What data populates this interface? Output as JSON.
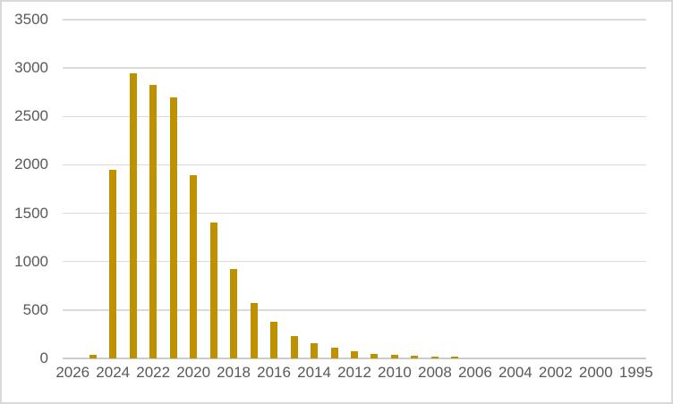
{
  "chart": {
    "colors": {
      "bar": "#BF9000",
      "gridline": "#DADADA",
      "axis_line": "#CCCCCC",
      "tick_text": "#595959",
      "frame_border": "#D9D9D9",
      "background": "#FFFFFF"
    }
  },
  "chart_data": {
    "type": "bar",
    "title": "",
    "xlabel": "",
    "ylabel": "",
    "legend": false,
    "grid": true,
    "ylim": [
      0,
      3500
    ],
    "y_tick_interval": 500,
    "y_ticks": [
      "3500",
      "3000",
      "2500",
      "2000",
      "1500",
      "1000",
      "500",
      "0"
    ],
    "x_tick_labels": [
      "2026",
      "2024",
      "2022",
      "2020",
      "2018",
      "2016",
      "2014",
      "2012",
      "2010",
      "2008",
      "2006",
      "2004",
      "2002",
      "2000",
      "1995"
    ],
    "n_slots": 29,
    "slots": [
      {
        "tick": "2026",
        "value": 0
      },
      {
        "tick": "",
        "value": 35
      },
      {
        "tick": "2024",
        "value": 1950
      },
      {
        "tick": "",
        "value": 2950
      },
      {
        "tick": "2022",
        "value": 2830
      },
      {
        "tick": "",
        "value": 2700
      },
      {
        "tick": "2020",
        "value": 1890
      },
      {
        "tick": "",
        "value": 1400
      },
      {
        "tick": "2018",
        "value": 920
      },
      {
        "tick": "",
        "value": 575
      },
      {
        "tick": "2016",
        "value": 375
      },
      {
        "tick": "",
        "value": 235
      },
      {
        "tick": "2014",
        "value": 160
      },
      {
        "tick": "",
        "value": 110
      },
      {
        "tick": "2012",
        "value": 70
      },
      {
        "tick": "",
        "value": 48
      },
      {
        "tick": "2010",
        "value": 38
      },
      {
        "tick": "",
        "value": 28
      },
      {
        "tick": "2008",
        "value": 18
      },
      {
        "tick": "",
        "value": 14
      },
      {
        "tick": "2006",
        "value": 0
      },
      {
        "tick": "",
        "value": 0
      },
      {
        "tick": "2004",
        "value": 0
      },
      {
        "tick": "",
        "value": 0
      },
      {
        "tick": "2002",
        "value": 0
      },
      {
        "tick": "",
        "value": 0
      },
      {
        "tick": "2000",
        "value": 0
      },
      {
        "tick": "",
        "value": 0
      },
      {
        "tick": "1995",
        "value": 0
      }
    ]
  }
}
